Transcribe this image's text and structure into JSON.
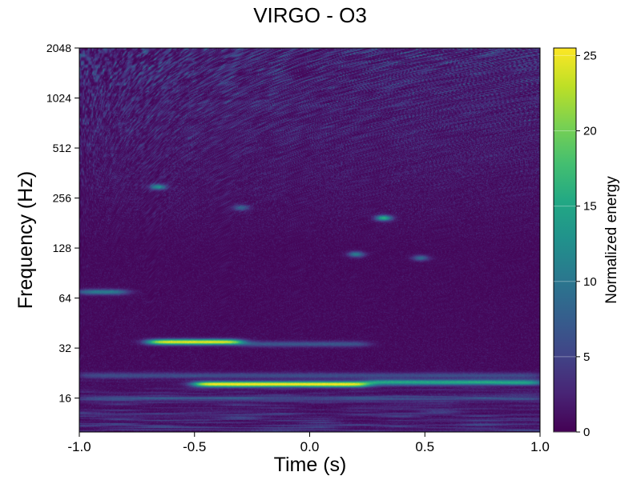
{
  "chart_data": {
    "type": "heatmap",
    "title": "VIRGO - O3",
    "xlabel": "Time (s)",
    "ylabel": "Frequency (Hz)",
    "xlim": [
      -1.0,
      1.0
    ],
    "ylim": [
      10,
      2048
    ],
    "yscale": "log2",
    "xticks": [
      -1.0,
      -0.5,
      0.0,
      0.5,
      1.0
    ],
    "xtick_labels": [
      "-1.0",
      "-0.5",
      "0.0",
      "0.5",
      "1.0"
    ],
    "yticks": [
      16,
      32,
      64,
      128,
      256,
      512,
      1024,
      2048
    ],
    "ytick_labels": [
      "16",
      "32",
      "64",
      "128",
      "256",
      "512",
      "1024",
      "2048"
    ],
    "colormap": "viridis",
    "colorbar": {
      "label": "Normalized energy",
      "range": [
        0,
        25.5
      ],
      "ticks": [
        0,
        5,
        10,
        15,
        20,
        25
      ],
      "tick_labels": [
        "0",
        "5",
        "10",
        "15",
        "20",
        "25"
      ]
    },
    "features": [
      {
        "t_start": -0.5,
        "t_end": 0.25,
        "f": 19.5,
        "peak": 25,
        "description": "brightest horizontal streak"
      },
      {
        "t_start": 0.25,
        "t_end": 1.0,
        "f": 20,
        "peak": 14
      },
      {
        "t_start": -0.7,
        "t_end": -0.3,
        "f": 35,
        "peak": 24
      },
      {
        "t_start": -0.3,
        "t_end": 0.25,
        "f": 34,
        "peak": 6
      },
      {
        "t_start": -1.0,
        "t_end": 1.0,
        "f": 22,
        "peak": 5
      },
      {
        "t_start": -1.0,
        "t_end": 1.0,
        "f": 16,
        "peak": 4
      },
      {
        "t_start": -1.0,
        "t_end": -0.8,
        "f": 70,
        "peak": 10
      },
      {
        "t": -0.66,
        "f": 300,
        "peak": 12
      },
      {
        "t": 0.32,
        "f": 195,
        "peak": 15
      },
      {
        "t": 0.2,
        "f": 118,
        "peak": 10
      },
      {
        "t": 0.48,
        "f": 112,
        "peak": 8
      },
      {
        "t": -0.3,
        "f": 225,
        "peak": 7
      }
    ],
    "grid": false
  }
}
